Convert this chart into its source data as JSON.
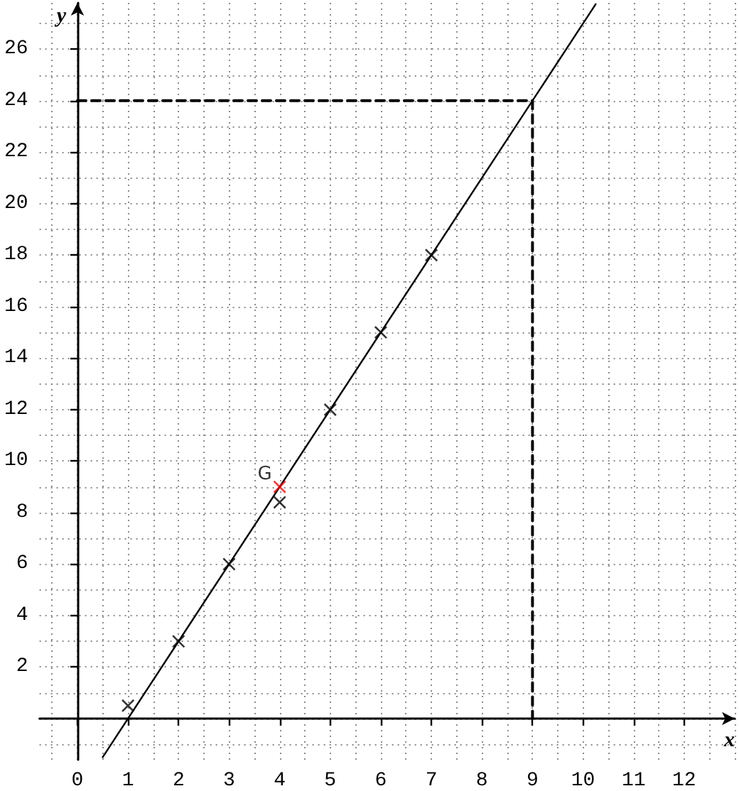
{
  "chart_data": {
    "type": "scatter",
    "xlabel": "x",
    "ylabel": "y",
    "xlim": [
      -0.75,
      13
    ],
    "ylim": [
      -1.6,
      27.8
    ],
    "xticks": [
      0,
      1,
      2,
      3,
      4,
      5,
      6,
      7,
      8,
      9,
      10,
      11,
      12
    ],
    "yticks": [
      2,
      4,
      6,
      8,
      10,
      12,
      14,
      16,
      18,
      20,
      22,
      24,
      26
    ],
    "grid": true,
    "marker": "cross",
    "series": [
      {
        "color": "#000000",
        "x": [
          1,
          2,
          3,
          4,
          5,
          6,
          7
        ],
        "values": [
          0.5,
          3,
          6,
          8.4,
          12,
          15,
          18
        ]
      },
      {
        "name": "G",
        "color": "#ff0000",
        "x": [
          4
        ],
        "values": [
          9
        ]
      },
      {
        "type": "line",
        "color": "#000000",
        "x": [
          0.5,
          10.25
        ],
        "values": [
          -1.5,
          27.75
        ],
        "marker": "none",
        "line_style": "solid"
      },
      {
        "type": "line",
        "color": "#000000",
        "x": [
          0,
          9,
          9
        ],
        "values": [
          24,
          24,
          0
        ],
        "marker": "none",
        "line_style": "dashed"
      }
    ]
  }
}
